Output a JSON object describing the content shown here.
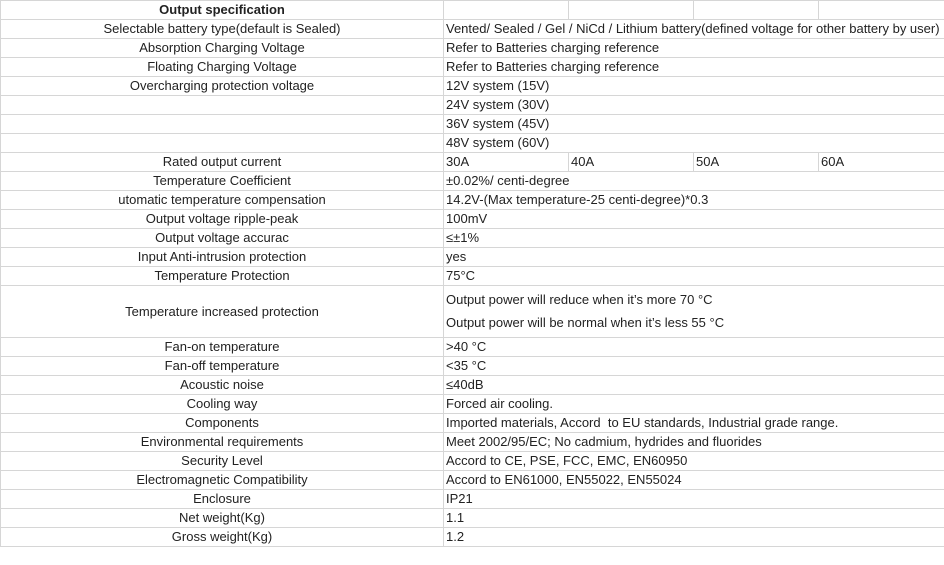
{
  "title": "Output specification",
  "rows": [
    {
      "label": "Selectable battery type(default is Sealed)",
      "value": "Vented/ Sealed / Gel / NiCd / Lithium battery(defined voltage for other battery by user)"
    },
    {
      "label": "Absorption Charging Voltage",
      "value": "Refer to Batteries charging reference"
    },
    {
      "label": "Floating Charging Voltage",
      "value": "Refer to Batteries charging reference"
    },
    {
      "label": "Overcharging protection voltage",
      "values": [
        "12V system (15V)",
        "24V system (30V)",
        "36V system (45V)",
        "48V system (60V)"
      ]
    },
    {
      "label": "Rated output current",
      "cells": [
        "30A",
        "40A",
        "50A",
        "60A"
      ]
    },
    {
      "label": "Temperature Coefficient",
      "value": "±0.02%/ centi-degree"
    },
    {
      "label": "utomatic temperature compensation",
      "value": "14.2V-(Max temperature-25 centi-degree)*0.3"
    },
    {
      "label": "Output voltage ripple-peak",
      "value": "100mV"
    },
    {
      "label": "Output voltage accurac",
      "value": "≤±1%"
    },
    {
      "label": "Input Anti-intrusion protection",
      "value": "yes"
    },
    {
      "label": "Temperature Protection",
      "value": "75°C"
    },
    {
      "label": "Temperature increased protection",
      "lines": [
        "Output power will reduce when it’s more 70 °C",
        "Output power will be normal when it’s less 55 °C"
      ]
    },
    {
      "label": "Fan-on temperature",
      "value": ">40 °C"
    },
    {
      "label": "Fan-off temperature",
      "value": "<35 °C"
    },
    {
      "label": "Acoustic noise",
      "value": "≤40dB"
    },
    {
      "label": "Cooling way",
      "value": "Forced air cooling."
    },
    {
      "label": "Components",
      "value": "Imported materials, Accord  to EU standards, Industrial grade range."
    },
    {
      "label": "Environmental requirements",
      "value": "Meet 2002/95/EC; No cadmium, hydrides and fluorides"
    },
    {
      "label": "Security Level",
      "value": "Accord to CE, PSE, FCC, EMC, EN60950"
    },
    {
      "label": "Electromagnetic Compatibility",
      "value": "Accord to EN61000, EN55022, EN55024"
    },
    {
      "label": "Enclosure",
      "value": "IP21"
    },
    {
      "label": "Net weight(Kg)",
      "value": "1.1"
    },
    {
      "label": "Gross weight(Kg)",
      "value": "1.2"
    }
  ]
}
